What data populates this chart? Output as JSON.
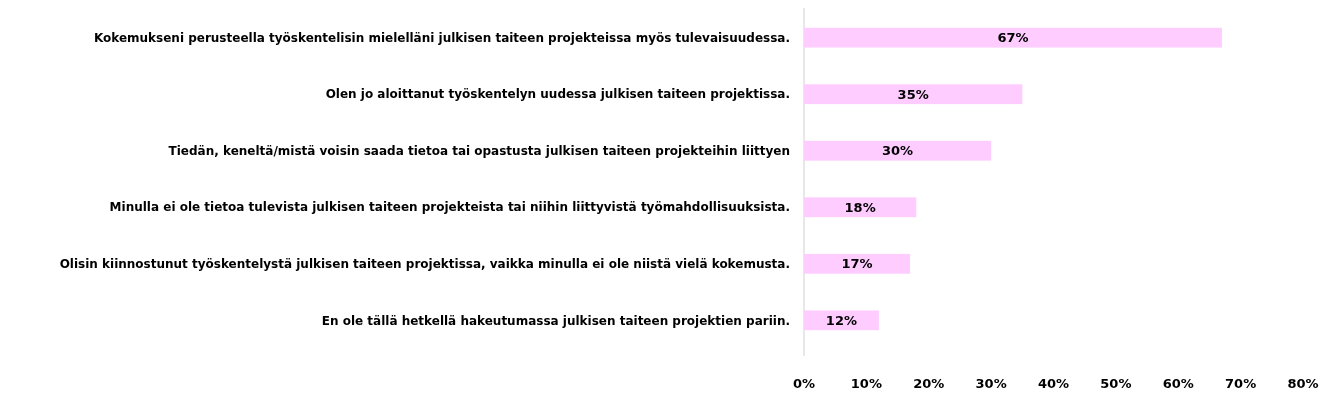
{
  "chart_data": {
    "type": "bar",
    "orientation": "horizontal",
    "categories": [
      "Kokemukseni perusteella työskentelisin mielelläni julkisen taiteen projekteissa myös tulevaisuudessa.",
      "Olen jo aloittanut työskentelyn uudessa julkisen taiteen projektissa.",
      "Tiedän, keneltä/mistä voisin saada tietoa tai opastusta julkisen taiteen projekteihin liittyen",
      "Minulla ei ole tietoa tulevista julkisen taiteen projekteista tai niihin liittyvistä työmahdollisuuksista.",
      "Olisin kiinnostunut työskentelystä julkisen taiteen projektissa, vaikka minulla ei ole niistä vielä kokemusta.",
      "En ole tällä hetkellä hakeutumassa julkisen taiteen projektien pariin."
    ],
    "values": [
      67,
      35,
      30,
      18,
      17,
      12
    ],
    "value_labels": [
      "67%",
      "35%",
      "30%",
      "18%",
      "17%",
      "12%"
    ],
    "color": "#ffccff",
    "xlim": [
      0,
      80
    ],
    "xticks": [
      {
        "value": 0,
        "label": "0%"
      },
      {
        "value": 10,
        "label": "10%"
      },
      {
        "value": 20,
        "label": "20%"
      },
      {
        "value": 30,
        "label": "30%"
      },
      {
        "value": 40,
        "label": "40%"
      },
      {
        "value": 50,
        "label": "50%"
      },
      {
        "value": 60,
        "label": "60%"
      },
      {
        "value": 70,
        "label": "70%"
      },
      {
        "value": 80,
        "label": "80%"
      }
    ],
    "grid": false
  }
}
